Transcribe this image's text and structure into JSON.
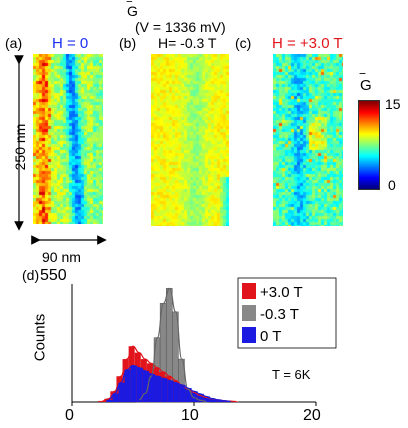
{
  "top": {
    "gbar_symbol": "G",
    "voltage_label": "(V = 1336 mV)",
    "panels": [
      {
        "letter": "(a)",
        "field": "H = 0",
        "color": "#1a2ef0"
      },
      {
        "letter": "(b)",
        "field": "H= -0.3 T",
        "color": "#000000"
      },
      {
        "letter": "(c)",
        "field": "H = +3.0 T",
        "color": "#e0141a"
      }
    ],
    "scale_vertical": "250 nm",
    "scale_horizontal": "90 nm",
    "colorbar": {
      "title": "G",
      "max_label": "15",
      "min_label": "0",
      "range": [
        0,
        15
      ],
      "colormap": "jet"
    }
  },
  "chart_data": {
    "type": "bar",
    "panel_letter": "(d)",
    "ylabel": "Counts",
    "y_top_label": "550",
    "xlim": [
      0,
      20
    ],
    "x_ticks": [
      "0",
      "10",
      "20"
    ],
    "bin_width": 0.55,
    "annotation": "T = 6K",
    "series": [
      {
        "name": "+3.0 T",
        "color": "#e0141a",
        "x": [
          2.5,
          3.0,
          3.5,
          4.0,
          4.5,
          5.0,
          5.5,
          6.0,
          6.5,
          7.0,
          7.5,
          8.0,
          8.5,
          9.0,
          9.5,
          10.0,
          10.5,
          11.0,
          11.5,
          12.0,
          12.5,
          13.0,
          13.5
        ],
        "values": [
          5,
          15,
          50,
          120,
          200,
          260,
          230,
          200,
          180,
          160,
          140,
          120,
          100,
          80,
          60,
          45,
          30,
          22,
          15,
          10,
          6,
          4,
          2
        ]
      },
      {
        "name": "-0.3 T",
        "color": "#888888",
        "x": [
          5.5,
          6.0,
          6.5,
          7.0,
          7.5,
          8.0,
          8.5,
          9.0,
          9.5,
          10.0,
          10.5,
          11.0
        ],
        "values": [
          10,
          40,
          120,
          300,
          460,
          530,
          420,
          200,
          60,
          20,
          8,
          3
        ]
      },
      {
        "name": "0 T",
        "color": "#1a1ae0",
        "x": [
          3.0,
          3.5,
          4.0,
          4.5,
          5.0,
          5.5,
          6.0,
          6.5,
          7.0,
          7.5,
          8.0,
          8.5,
          9.0,
          9.5,
          10.0,
          10.5,
          11.0,
          11.5,
          12.0,
          12.5,
          13.0
        ],
        "values": [
          10,
          40,
          90,
          150,
          170,
          160,
          145,
          130,
          120,
          110,
          100,
          90,
          80,
          65,
          50,
          38,
          26,
          16,
          10,
          6,
          3
        ]
      }
    ]
  }
}
